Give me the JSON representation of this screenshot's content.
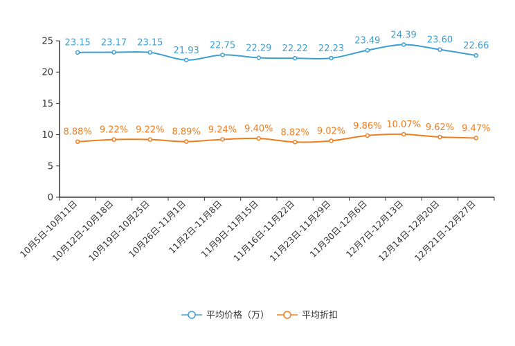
{
  "chart_data": {
    "type": "line",
    "title": "",
    "xlabel": "",
    "ylabel": "",
    "ylim": [
      0,
      25
    ],
    "yticks": [
      0,
      5,
      10,
      15,
      20,
      25
    ],
    "grid": false,
    "legend_position": "bottom-center",
    "categories": [
      "10月5日-10月11日",
      "10月12日-10月18日",
      "10月19日-10月25日",
      "10月26日-11月1日",
      "11月2日-11月8日",
      "11月9日-11月15日",
      "11月16日-11月22日",
      "11月23日-11月29日",
      "11月30日-12月6日",
      "12月7日-12月13日",
      "12月14日-12月20日",
      "12月21日-12月27日"
    ],
    "series": [
      {
        "name": "平均价格（万）",
        "color": "#3d9ed2",
        "values": [
          23.15,
          23.17,
          23.15,
          21.93,
          22.75,
          22.29,
          22.22,
          22.23,
          23.49,
          24.39,
          23.6,
          22.66
        ],
        "labels": [
          "23.15",
          "23.17",
          "23.15",
          "21.93",
          "22.75",
          "22.29",
          "22.22",
          "22.23",
          "23.49",
          "24.39",
          "23.60",
          "22.66"
        ]
      },
      {
        "name": "平均折扣",
        "color": "#f07d1d",
        "values": [
          8.88,
          9.22,
          9.22,
          8.89,
          9.24,
          9.4,
          8.82,
          9.02,
          9.86,
          10.07,
          9.62,
          9.47
        ],
        "labels": [
          "8.88%",
          "9.22%",
          "9.22%",
          "8.89%",
          "9.24%",
          "9.40%",
          "8.82%",
          "9.02%",
          "9.86%",
          "10.07%",
          "9.62%",
          "9.47%"
        ]
      }
    ]
  }
}
